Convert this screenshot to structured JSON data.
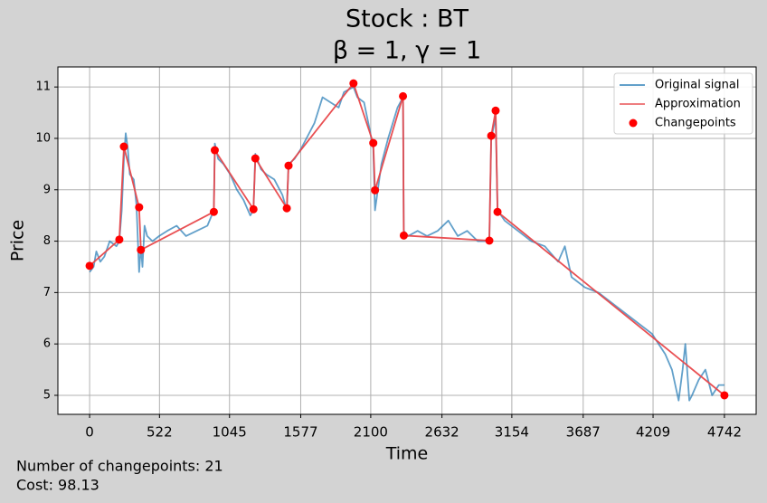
{
  "chart_data": {
    "type": "line",
    "title": "Stock : BT",
    "subtitle": "β = 1, γ = 1",
    "x_label": "Time",
    "y_label": "Price",
    "annotations": [
      "Number of changepoints: 21",
      "Cost: 98.13"
    ],
    "xlim": [
      -237,
      4979
    ],
    "ylim": [
      4.63,
      11.39
    ],
    "xticks": [
      0,
      522,
      1045,
      1577,
      2100,
      2632,
      3154,
      3687,
      4209,
      4742
    ],
    "yticks": [
      5,
      6,
      7,
      8,
      9,
      10,
      11
    ],
    "grid": true,
    "legend": "upper right",
    "series": [
      {
        "name": "Original signal",
        "color": "#1f77b4",
        "style": "line",
        "x": [
          0,
          30,
          50,
          80,
          110,
          150,
          200,
          222,
          240,
          256,
          270,
          285,
          300,
          330,
          350,
          370,
          383,
          395,
          410,
          430,
          470,
          520,
          580,
          650,
          720,
          800,
          880,
          928,
          935,
          960,
          1000,
          1050,
          1100,
          1150,
          1200,
          1224,
          1238,
          1280,
          1320,
          1380,
          1440,
          1473,
          1486,
          1530,
          1580,
          1620,
          1680,
          1740,
          1800,
          1860,
          1900,
          1971,
          2000,
          2050,
          2090,
          2119,
          2132,
          2180,
          2230,
          2300,
          2341,
          2347,
          2380,
          2450,
          2520,
          2600,
          2680,
          2750,
          2820,
          2900,
          2986,
          3000,
          3033,
          3047,
          3100,
          3200,
          3300,
          3400,
          3500,
          3550,
          3600,
          3700,
          3800,
          3900,
          4000,
          4100,
          4200,
          4300,
          4350,
          4400,
          4430,
          4450,
          4480,
          4500,
          4550,
          4600,
          4650,
          4700,
          4742
        ],
        "values": [
          7.4,
          7.5,
          7.8,
          7.6,
          7.7,
          8.0,
          7.9,
          8.0,
          8.6,
          9.6,
          10.1,
          9.8,
          9.3,
          9.2,
          8.7,
          7.4,
          7.9,
          7.5,
          8.3,
          8.1,
          8.0,
          8.1,
          8.2,
          8.3,
          8.1,
          8.2,
          8.3,
          8.6,
          9.9,
          9.6,
          9.5,
          9.3,
          9.0,
          8.8,
          8.5,
          8.6,
          9.7,
          9.4,
          9.3,
          9.2,
          8.9,
          8.6,
          9.5,
          9.6,
          9.8,
          10.0,
          10.3,
          10.8,
          10.7,
          10.6,
          10.9,
          11.0,
          10.8,
          10.7,
          10.2,
          9.8,
          8.6,
          9.5,
          10.0,
          10.6,
          10.8,
          8.2,
          8.1,
          8.2,
          8.1,
          8.2,
          8.4,
          8.1,
          8.2,
          8.0,
          8.0,
          10.0,
          10.4,
          8.6,
          8.4,
          8.2,
          8.0,
          7.9,
          7.6,
          7.9,
          7.3,
          7.1,
          7.0,
          6.8,
          6.6,
          6.4,
          6.2,
          5.8,
          5.5,
          4.9,
          5.5,
          6.0,
          4.9,
          5.0,
          5.3,
          5.5,
          5.0,
          5.2,
          5.2
        ]
      },
      {
        "name": "Approximation",
        "color": "#e8474a",
        "style": "line",
        "x": [
          0,
          222,
          256,
          370,
          383,
          928,
          935,
          1224,
          1238,
          1473,
          1486,
          1971,
          2119,
          2132,
          2341,
          2347,
          2986,
          3000,
          3033,
          3047,
          4742
        ],
        "values": [
          7.52,
          8.03,
          9.84,
          8.66,
          7.83,
          8.57,
          9.77,
          8.62,
          9.61,
          8.64,
          9.47,
          11.07,
          9.91,
          8.99,
          10.82,
          8.11,
          8.01,
          10.05,
          10.54,
          8.57,
          5.0
        ]
      },
      {
        "name": "Changepoints",
        "color": "#ff0000",
        "style": "marker",
        "x": [
          0,
          222,
          256,
          370,
          383,
          928,
          935,
          1224,
          1238,
          1473,
          1486,
          1971,
          2119,
          2132,
          2341,
          2347,
          2986,
          3000,
          3033,
          3047,
          4742
        ],
        "values": [
          7.52,
          8.03,
          9.84,
          8.66,
          7.83,
          8.57,
          9.77,
          8.62,
          9.61,
          8.64,
          9.47,
          11.07,
          9.91,
          8.99,
          10.82,
          8.11,
          8.01,
          10.05,
          10.54,
          8.57,
          5.0
        ]
      }
    ]
  }
}
